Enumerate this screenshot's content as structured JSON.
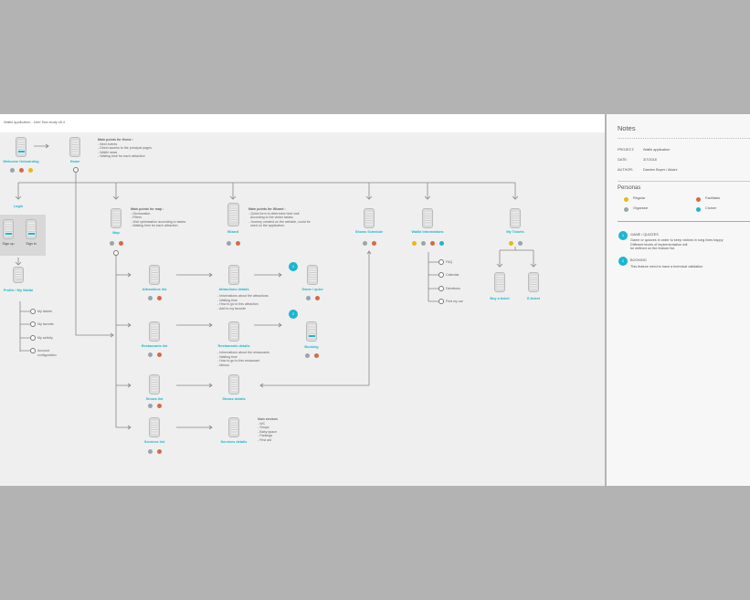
{
  "header": {
    "title": "Walibi application - User flow study v8.4"
  },
  "colors": {
    "regular": "#e8b817",
    "facilitator": "#d46a45",
    "organizer": "#9aa5ab",
    "cruiser": "#1bb6cf"
  },
  "screens": {
    "welcome": "Welcome Onboarding",
    "home": "Home",
    "login": "Login",
    "signup": "Sign up",
    "signin": "Sign in",
    "profile": "Profile / My Walibi",
    "map": "Map",
    "wizard": "Wizard",
    "shows_schedule": "Shows Schedule",
    "walibi_info": "Walibi Informations",
    "my_tickets": "My Tickets",
    "attr_list": "Attractions list",
    "attr_details": "Attractions details",
    "game": "Game / quizz",
    "rest_list": "Restaurants list",
    "rest_details": "Restaurants details",
    "booking": "Booking",
    "shows_list": "Shows list",
    "shows_details": "Shows details",
    "serv_list": "Services list",
    "serv_details": "Services details",
    "buy_ticket": "Buy a ticket",
    "eticket": "E-ticket"
  },
  "annotations": {
    "home_title": "Main points for Home :",
    "home_body": "- Next events\n- Direct access to the principal pages\n- Walibi news\n- Waiting time for each attraction",
    "map_title": "Main points for map :",
    "map_body": "- Geolocation\n- Filters\n- Visit optimization according to tastes\n- Waiting time for each attraction",
    "wizard_title": "Main points for Wizard :",
    "wizard_body": "- Quick form to determine best visit\n  according to the visitor tastes.\n- Journey created on the website, could be\n  used on the application.",
    "attr_body": "- Informations about the attractions\n- Waiting time\n- How to go to this attraction\n- Add to my favorite",
    "rest_body": "- Informations about the restaurants\n- Waiting time\n- How to go to this restaurant\n- Menus",
    "serv_title": "Main services",
    "serv_body": "- WC\n- Shops\n- Baby space\n- Parkings\n- First aid"
  },
  "profile_items": [
    "My tickets",
    "My favorite",
    "My activity",
    "Account\nconfiguration"
  ],
  "info_items": [
    "FAQ",
    "Calendar",
    "Directions",
    "Find my car"
  ],
  "badges": [
    "1",
    "2"
  ],
  "notes": {
    "title": "Notes",
    "project_label": "PROJECT:",
    "project": "Walibi application",
    "date_label": "DATE:",
    "date": "3/7/2018",
    "author_label": "AUTHOR:",
    "author": "Damien Boyer / Akiani",
    "personas_title": "Personas",
    "personas": [
      "Regular",
      "Facilitator",
      "Organizer",
      "Cruiser"
    ],
    "n1_title": "GAME / QUIZZES",
    "n1_body": "Game or quizzes in order to keep visitors in long lines happy\nDifferent levels of implementation will\nbe defined on the feature list.",
    "n2_title": "BOOKING",
    "n2_body": "This feature need to have a technical validation"
  }
}
